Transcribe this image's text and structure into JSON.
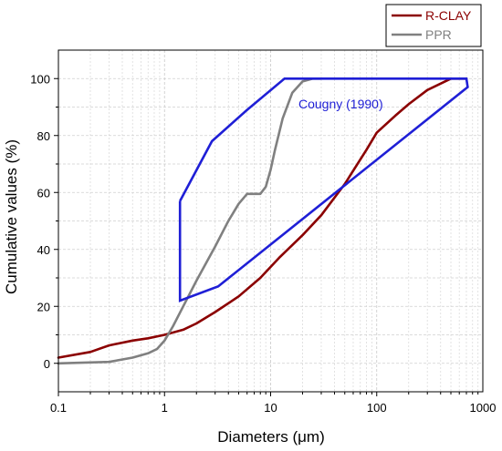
{
  "chart_data": {
    "type": "line",
    "xlabel": "Diameters (μm)",
    "ylabel": "Cumulative values (%)",
    "x_scale": "log",
    "xlim": [
      0.1,
      1000
    ],
    "ylim": [
      -10,
      110
    ],
    "x_ticks": [
      0.1,
      1,
      10,
      100,
      1000
    ],
    "x_tick_labels": [
      "0.1",
      "1",
      "10",
      "100",
      "1000"
    ],
    "y_ticks": [
      0,
      20,
      40,
      60,
      80,
      100
    ],
    "y_tick_labels": [
      "0",
      "20",
      "40",
      "60",
      "80",
      "100"
    ],
    "grid": true,
    "legend_position": "top-right",
    "series": [
      {
        "name": "R-CLAY",
        "color": "#8b0000",
        "points": [
          [
            0.1,
            2
          ],
          [
            0.2,
            4
          ],
          [
            0.3,
            6.3
          ],
          [
            0.5,
            8
          ],
          [
            0.7,
            8.8
          ],
          [
            1,
            10
          ],
          [
            1.5,
            11.8
          ],
          [
            2,
            14
          ],
          [
            3,
            18
          ],
          [
            5,
            23.5
          ],
          [
            8,
            30
          ],
          [
            12,
            37
          ],
          [
            20,
            45
          ],
          [
            30,
            52
          ],
          [
            50,
            63
          ],
          [
            80,
            75
          ],
          [
            100,
            81
          ],
          [
            150,
            87
          ],
          [
            200,
            91
          ],
          [
            300,
            96
          ],
          [
            500,
            100
          ],
          [
            700,
            100
          ]
        ]
      },
      {
        "name": "PPR",
        "color": "#808080",
        "points": [
          [
            0.1,
            0
          ],
          [
            0.3,
            0.5
          ],
          [
            0.5,
            2
          ],
          [
            0.7,
            3.5
          ],
          [
            0.85,
            5
          ],
          [
            1,
            8
          ],
          [
            1.2,
            13
          ],
          [
            1.5,
            20
          ],
          [
            2,
            29
          ],
          [
            3,
            41
          ],
          [
            4,
            50
          ],
          [
            5,
            56
          ],
          [
            6,
            59.5
          ],
          [
            8,
            59.5
          ],
          [
            9,
            62
          ],
          [
            10,
            68
          ],
          [
            11,
            75
          ],
          [
            13,
            86
          ],
          [
            16,
            95
          ],
          [
            20,
            99
          ],
          [
            25,
            100
          ],
          [
            30,
            100
          ]
        ]
      }
    ],
    "envelope": {
      "label": "Cougny (1990)",
      "color": "#1f1fd6",
      "points": [
        [
          1.4,
          57
        ],
        [
          2.8,
          78
        ],
        [
          6,
          89
        ],
        [
          13.5,
          100
        ],
        [
          700,
          100
        ],
        [
          720,
          97
        ],
        [
          3.2,
          27
        ],
        [
          1.4,
          22
        ],
        [
          1.4,
          57
        ]
      ]
    }
  },
  "legend": {
    "items": [
      {
        "label": "R-CLAY",
        "color": "#8b0000"
      },
      {
        "label": "PPR",
        "color": "#808080"
      }
    ]
  }
}
